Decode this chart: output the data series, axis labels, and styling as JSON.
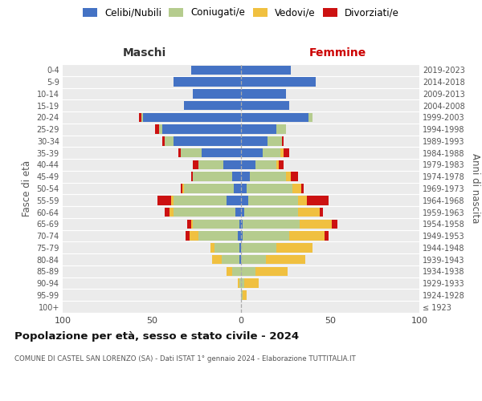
{
  "age_groups": [
    "100+",
    "95-99",
    "90-94",
    "85-89",
    "80-84",
    "75-79",
    "70-74",
    "65-69",
    "60-64",
    "55-59",
    "50-54",
    "45-49",
    "40-44",
    "35-39",
    "30-34",
    "25-29",
    "20-24",
    "15-19",
    "10-14",
    "5-9",
    "0-4"
  ],
  "birth_years": [
    "≤ 1923",
    "1924-1928",
    "1929-1933",
    "1934-1938",
    "1939-1943",
    "1944-1948",
    "1949-1953",
    "1954-1958",
    "1959-1963",
    "1964-1968",
    "1969-1973",
    "1974-1978",
    "1979-1983",
    "1984-1988",
    "1989-1993",
    "1994-1998",
    "1999-2003",
    "2004-2008",
    "2009-2013",
    "2014-2018",
    "2019-2023"
  ],
  "maschi": {
    "celibi": [
      0,
      0,
      0,
      0,
      1,
      1,
      2,
      1,
      3,
      8,
      4,
      5,
      10,
      22,
      38,
      44,
      55,
      32,
      27,
      38,
      28
    ],
    "coniugati": [
      0,
      0,
      1,
      5,
      10,
      14,
      22,
      26,
      35,
      30,
      28,
      22,
      14,
      12,
      5,
      2,
      1,
      0,
      0,
      0,
      0
    ],
    "vedovi": [
      0,
      0,
      1,
      3,
      5,
      2,
      5,
      1,
      2,
      1,
      1,
      0,
      0,
      0,
      0,
      0,
      0,
      0,
      0,
      0,
      0
    ],
    "divorziati": [
      0,
      0,
      0,
      0,
      0,
      0,
      2,
      2,
      3,
      8,
      1,
      1,
      3,
      1,
      1,
      2,
      1,
      0,
      0,
      0,
      0
    ]
  },
  "femmine": {
    "nubili": [
      0,
      0,
      0,
      0,
      0,
      0,
      1,
      1,
      2,
      4,
      3,
      5,
      8,
      12,
      15,
      20,
      38,
      27,
      25,
      42,
      28
    ],
    "coniugate": [
      0,
      1,
      2,
      8,
      14,
      20,
      26,
      32,
      30,
      28,
      26,
      20,
      12,
      10,
      8,
      5,
      2,
      0,
      0,
      0,
      0
    ],
    "vedove": [
      0,
      2,
      8,
      18,
      22,
      20,
      20,
      18,
      12,
      5,
      5,
      3,
      1,
      2,
      0,
      0,
      0,
      0,
      0,
      0,
      0
    ],
    "divorziate": [
      0,
      0,
      0,
      0,
      0,
      0,
      2,
      3,
      2,
      12,
      1,
      4,
      3,
      3,
      1,
      0,
      0,
      0,
      0,
      0,
      0
    ]
  },
  "colors": {
    "celibi_nubili": "#4472C4",
    "coniugati": "#b5cc8e",
    "vedovi": "#f0c040",
    "divorziati": "#cc1111"
  },
  "xlim": 100,
  "xticks": [
    -100,
    -50,
    0,
    50,
    100
  ],
  "title": "Popolazione per età, sesso e stato civile - 2024",
  "subtitle": "COMUNE DI CASTEL SAN LORENZO (SA) - Dati ISTAT 1° gennaio 2024 - Elaborazione TUTTITALIA.IT",
  "xlabel_left": "Maschi",
  "xlabel_right": "Femmine",
  "ylabel_left": "Fasce di età",
  "ylabel_right": "Anni di nascita",
  "bg_color": "#ebebeb",
  "legend_labels": [
    "Celibi/Nubili",
    "Coniugati/e",
    "Vedovi/e",
    "Divorziati/e"
  ]
}
